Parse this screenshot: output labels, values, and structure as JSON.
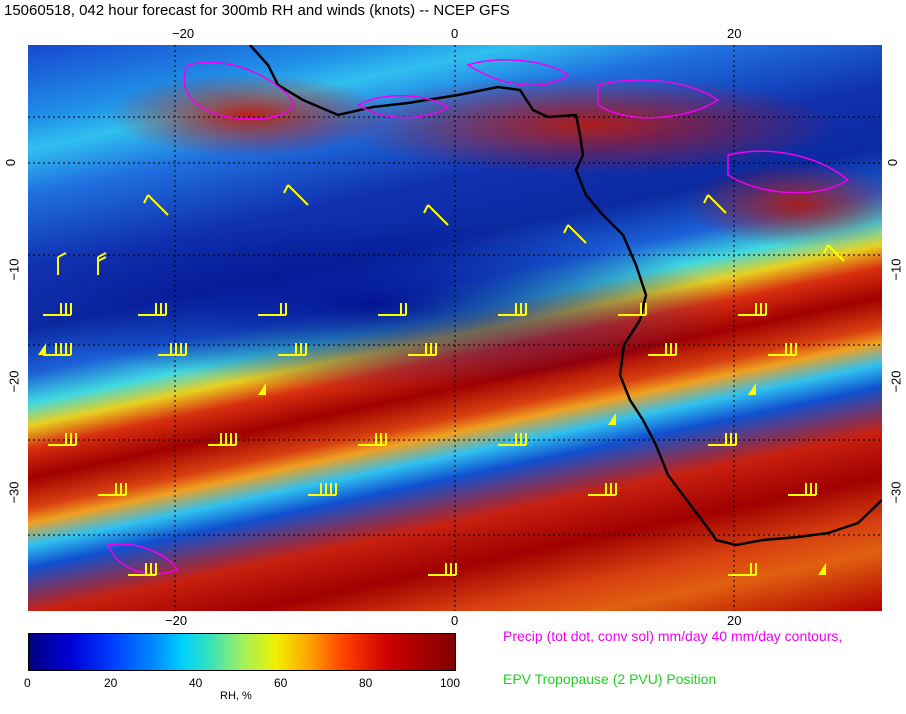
{
  "title": "15060518, 042 hour forecast for 300mb RH and winds (knots) -- NCEP GFS",
  "axes": {
    "longitude_ticks": [
      "−20",
      "0",
      "20"
    ],
    "latitude_ticks": [
      "0",
      "−10",
      "−20",
      "−30"
    ]
  },
  "colorbar": {
    "ticks": [
      "0",
      "20",
      "40",
      "60",
      "80",
      "100"
    ],
    "label": "RH, %"
  },
  "legend": {
    "precip": "Precip (tot dot, conv sol) mm/day 40 mm/day contours,",
    "epv": "EPV Tropopause (2 PVU) Position"
  },
  "colors": {
    "precip": "#f000f0",
    "epv": "#20d020",
    "wind_barbs": "#ffff00",
    "coastline": "#000000"
  }
}
